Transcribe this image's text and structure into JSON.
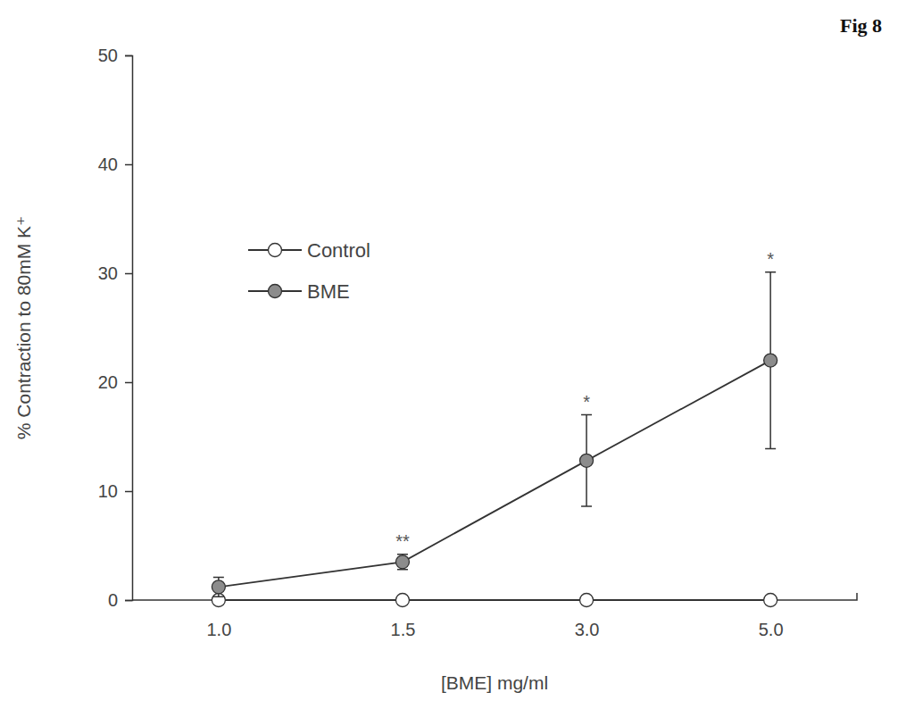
{
  "chart_data": {
    "type": "line",
    "title": "Fig 8",
    "x_label": "[BME] mg/ml",
    "y_label": "% Contraction to 80mM K⁺",
    "categories": [
      "1.0",
      "1.5",
      "3.0",
      "5.0"
    ],
    "series": [
      {
        "name": "Control",
        "color": "#ffffff",
        "marker": "circle",
        "values": [
          0,
          0,
          0,
          0
        ]
      },
      {
        "name": "BME",
        "color": "#8c8c8c",
        "marker": "circle",
        "values": [
          1.2,
          3.5,
          12.8,
          22.0
        ],
        "errors": [
          0.9,
          0.7,
          4.2,
          8.1
        ]
      }
    ],
    "annotations": [
      {
        "text": "**",
        "category": "1.5"
      },
      {
        "text": "*",
        "category": "3.0"
      },
      {
        "text": "*",
        "category": "5.0"
      }
    ],
    "ylim": [
      0,
      50
    ],
    "yticks": [
      0,
      10,
      20,
      30,
      40,
      50
    ],
    "grid": false,
    "legend": "upper left"
  }
}
